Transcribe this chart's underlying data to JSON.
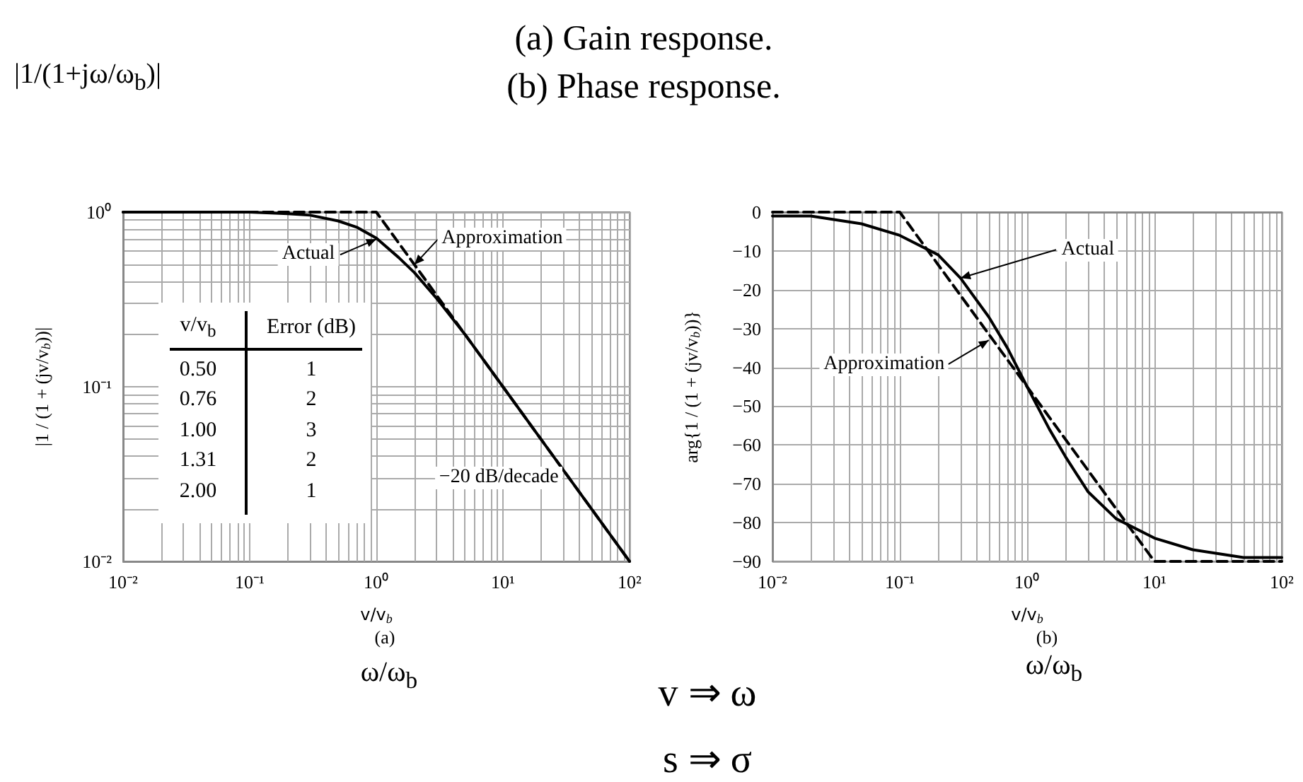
{
  "chart_data": [
    {
      "type": "line",
      "title": "(a) Gain response.",
      "xlabel": "v/v$_{b}$",
      "ylabel": "|1 / (1 + (jv/v$_{b}$))|",
      "log": "xy",
      "grid": true,
      "marker": "none",
      "xlim": [
        0.01,
        100
      ],
      "xticks": [
        {
          "value": 0.01,
          "label": "10⁻²"
        },
        {
          "value": 0.1,
          "label": "10⁻¹"
        },
        {
          "value": 1,
          "label": "10⁰"
        },
        {
          "value": 10,
          "label": "10¹"
        },
        {
          "value": 100,
          "label": "10²"
        }
      ],
      "ylim": [
        0.01,
        1
      ],
      "yticks": [
        {
          "value": 0.01,
          "label": "10⁻²"
        },
        {
          "value": 0.1,
          "label": "10⁻¹"
        },
        {
          "value": 1,
          "label": "10⁰"
        }
      ],
      "series": [
        {
          "color": "#000000",
          "line_style": "solid",
          "x": [
            0.01,
            0.1,
            0.2,
            0.3,
            0.5,
            0.7,
            1,
            1.5,
            2,
            3,
            5,
            10,
            20,
            50,
            100
          ],
          "values": [
            1,
            1,
            0.98,
            0.96,
            0.89,
            0.82,
            0.71,
            0.55,
            0.45,
            0.32,
            0.2,
            0.1,
            0.05,
            0.02,
            0.01
          ]
        },
        {
          "color": "#000000",
          "line_style": "dashed",
          "x": [
            0.01,
            1,
            100
          ],
          "values": [
            1,
            1,
            0.01
          ]
        }
      ],
      "annotations": [
        "|1/(1+jω/ω$_{b}$)|",
        {
          "text": "Actual",
          "x": 1,
          "y": 0.7
        },
        {
          "text": "Approximation",
          "x": 2,
          "y": 0.5
        },
        {
          "text": "−20 dB/decade",
          "x": 33,
          "y": 0.03
        },
        "v/v$_{b}$",
        "Error (dB)",
        "0.50",
        "1",
        "0.76",
        "2",
        "1.00",
        "3",
        "1.31",
        "2",
        "2.00",
        "1",
        "(a)",
        "ω/ω$_{b}$"
      ]
    },
    {
      "type": "line",
      "title": "(b) Phase response.",
      "xlabel": "v/v$_{b}$",
      "ylabel": "arg{1 / (1 + (jv/v$_{b}$))}",
      "log": "x",
      "grid": true,
      "marker": "none",
      "xlim": [
        0.01,
        100
      ],
      "xticks": [
        {
          "value": 0.01,
          "label": "10⁻²"
        },
        {
          "value": 0.1,
          "label": "10⁻¹"
        },
        {
          "value": 1,
          "label": "10⁰"
        },
        {
          "value": 10,
          "label": "10¹"
        },
        {
          "value": 100,
          "label": "10²"
        }
      ],
      "ylim": [
        -90,
        0
      ],
      "yticks": [
        {
          "value": -90,
          "label": "−90"
        },
        {
          "value": -80,
          "label": "−80"
        },
        {
          "value": -70,
          "label": "−70"
        },
        {
          "value": -60,
          "label": "−60"
        },
        {
          "value": -50,
          "label": "−50"
        },
        {
          "value": -40,
          "label": "−40"
        },
        {
          "value": -30,
          "label": "−30"
        },
        {
          "value": -20,
          "label": "−20"
        },
        {
          "value": -10,
          "label": "−10"
        },
        0
      ],
      "series": [
        {
          "color": "#000000",
          "line_style": "solid",
          "x": [
            0.01,
            0.02,
            0.05,
            0.1,
            0.2,
            0.3,
            0.5,
            0.7,
            1,
            1.5,
            2,
            3,
            5,
            10,
            20,
            50,
            100
          ],
          "values": [
            -1,
            -1,
            -3,
            -6,
            -11,
            -17,
            -27,
            -35,
            -45,
            -56,
            -63,
            -72,
            -79,
            -84,
            -87,
            -89,
            -89
          ]
        },
        {
          "color": "#000000",
          "line_style": "dashed",
          "x": [
            0.01,
            0.1,
            10,
            100
          ],
          "values": [
            0,
            0,
            -90,
            -90
          ]
        }
      ],
      "annotations": [
        {
          "text": "Actual",
          "x": 0.3,
          "y": -17
        },
        {
          "text": "Approximation",
          "x": 0.5,
          "y": -33
        },
        "(b)",
        "ω/ω$_{b}$",
        "v ⇒ ω",
        "s ⇒ σ"
      ]
    }
  ]
}
